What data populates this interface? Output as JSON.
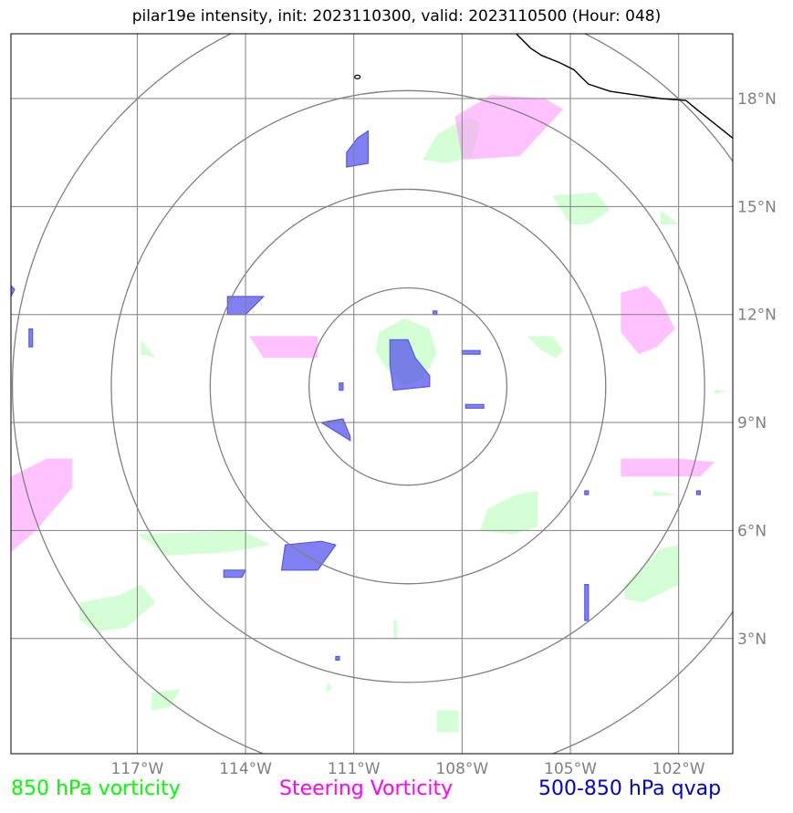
{
  "title": "pilar19e intensity, init: 2023110300, valid: 2023110500 (Hour: 048)",
  "map": {
    "lon_range": [
      -120.5,
      -100.5
    ],
    "lat_range": [
      -0.2,
      19.8
    ],
    "center": {
      "lon": -109.5,
      "lat": 10.0
    },
    "lon_ticks": [
      {
        "value": -117,
        "label": "117°W"
      },
      {
        "value": -114,
        "label": "114°W"
      },
      {
        "value": -111,
        "label": "111°W"
      },
      {
        "value": -108,
        "label": "108°W"
      },
      {
        "value": -105,
        "label": "105°W"
      },
      {
        "value": -102,
        "label": "102°W"
      }
    ],
    "lat_ticks": [
      {
        "value": 3,
        "label": "3°N"
      },
      {
        "value": 6,
        "label": "6°N"
      },
      {
        "value": 9,
        "label": "9°N"
      },
      {
        "value": 12,
        "label": "12°N"
      },
      {
        "value": 15,
        "label": "15°N"
      },
      {
        "value": 18,
        "label": "18°N"
      }
    ],
    "range_rings_deg": [
      2.74,
      5.48,
      8.22,
      10.96
    ],
    "colors": {
      "grid": "#808080",
      "rings": "#808080",
      "coast": "#000000",
      "vort850": "#ccffcc",
      "steering": "#ff99ff",
      "qvap": "#5555ee"
    },
    "coastline": [
      [
        -106.5,
        19.8
      ],
      [
        -106.1,
        19.4
      ],
      [
        -105.8,
        19.2
      ],
      [
        -105.3,
        19.0
      ],
      [
        -104.9,
        18.8
      ],
      [
        -104.5,
        18.4
      ],
      [
        -103.9,
        18.2
      ],
      [
        -103.2,
        18.1
      ],
      [
        -102.5,
        18.0
      ],
      [
        -101.8,
        17.95
      ],
      [
        -101.5,
        17.7
      ],
      [
        -101.0,
        17.3
      ],
      [
        -100.5,
        16.9
      ]
    ],
    "lakes": [
      [
        -110.9,
        18.6
      ]
    ],
    "vort850": [
      [
        [
          -110.3,
          11.5
        ],
        [
          -109.6,
          11.9
        ],
        [
          -108.9,
          11.6
        ],
        [
          -108.7,
          10.9
        ],
        [
          -109.1,
          10.2
        ],
        [
          -109.6,
          10.0
        ],
        [
          -110.1,
          10.5
        ],
        [
          -110.4,
          11.0
        ]
      ],
      [
        [
          -108.7,
          17.0
        ],
        [
          -107.8,
          17.5
        ],
        [
          -107.5,
          17.3
        ],
        [
          -107.7,
          16.4
        ],
        [
          -108.4,
          16.2
        ],
        [
          -109.1,
          16.3
        ]
      ],
      [
        [
          -105.5,
          15.3
        ],
        [
          -104.3,
          15.4
        ],
        [
          -103.9,
          14.9
        ],
        [
          -104.5,
          14.5
        ],
        [
          -105.0,
          14.5
        ]
      ],
      [
        [
          -102.5,
          14.9
        ],
        [
          -102.0,
          14.5
        ],
        [
          -102.5,
          14.5
        ]
      ],
      [
        [
          -106.2,
          11.4
        ],
        [
          -105.5,
          11.4
        ],
        [
          -105.2,
          11.0
        ],
        [
          -105.4,
          10.8
        ],
        [
          -105.8,
          11.0
        ]
      ],
      [
        [
          -116.9,
          11.3
        ],
        [
          -116.5,
          10.8
        ],
        [
          -116.9,
          10.9
        ]
      ],
      [
        [
          -117.0,
          5.9
        ],
        [
          -114.1,
          6.0
        ],
        [
          -113.3,
          5.6
        ],
        [
          -114.5,
          5.4
        ],
        [
          -116.2,
          5.3
        ]
      ],
      [
        [
          -118.6,
          4.0
        ],
        [
          -117.5,
          4.2
        ],
        [
          -116.9,
          4.5
        ],
        [
          -116.5,
          4.0
        ],
        [
          -117.3,
          3.3
        ],
        [
          -118.1,
          3.2
        ],
        [
          -118.6,
          3.5
        ]
      ],
      [
        [
          -116.6,
          1.5
        ],
        [
          -115.8,
          1.6
        ],
        [
          -116.1,
          1.1
        ],
        [
          -116.6,
          1.0
        ]
      ],
      [
        [
          -107.3,
          6.6
        ],
        [
          -106.5,
          7.0
        ],
        [
          -105.9,
          7.1
        ],
        [
          -105.9,
          6.1
        ],
        [
          -106.6,
          5.9
        ],
        [
          -107.5,
          6.0
        ]
      ],
      [
        [
          -103.5,
          4.5
        ],
        [
          -102.5,
          5.5
        ],
        [
          -102.0,
          5.6
        ],
        [
          -102.0,
          4.5
        ],
        [
          -103.0,
          4.0
        ],
        [
          -103.5,
          4.1
        ]
      ],
      [
        [
          -102.7,
          7.1
        ],
        [
          -102.0,
          7.0
        ],
        [
          -102.7,
          6.95
        ]
      ],
      [
        [
          -108.7,
          1.0
        ],
        [
          -108.1,
          1.0
        ],
        [
          -108.1,
          0.4
        ],
        [
          -108.7,
          0.4
        ]
      ],
      [
        [
          -111.7,
          1.8
        ],
        [
          -111.6,
          1.6
        ],
        [
          -111.8,
          1.5
        ]
      ],
      [
        [
          -109.9,
          3.5
        ],
        [
          -109.8,
          3.5
        ],
        [
          -109.8,
          3.0
        ],
        [
          -109.9,
          3.0
        ]
      ],
      [
        [
          -101.0,
          9.9
        ],
        [
          -100.6,
          9.9
        ],
        [
          -101.0,
          9.8
        ]
      ]
    ],
    "steering": [
      [
        [
          -108.2,
          17.5
        ],
        [
          -107.2,
          18.1
        ],
        [
          -105.7,
          18.0
        ],
        [
          -105.2,
          17.7
        ],
        [
          -106.4,
          16.4
        ],
        [
          -108.0,
          16.3
        ]
      ],
      [
        [
          -113.9,
          11.4
        ],
        [
          -112.0,
          11.4
        ],
        [
          -112.0,
          10.8
        ],
        [
          -113.5,
          10.8
        ]
      ],
      [
        [
          -103.6,
          12.6
        ],
        [
          -102.9,
          12.8
        ],
        [
          -102.5,
          12.4
        ],
        [
          -102.1,
          11.6
        ],
        [
          -102.6,
          11.1
        ],
        [
          -103.1,
          10.9
        ],
        [
          -103.6,
          11.5
        ]
      ],
      [
        [
          -103.6,
          8.0
        ],
        [
          -102.0,
          8.0
        ],
        [
          -101.0,
          7.9
        ],
        [
          -101.4,
          7.5
        ],
        [
          -103.6,
          7.5
        ]
      ],
      [
        [
          -120.5,
          7.5
        ],
        [
          -119.5,
          8.0
        ],
        [
          -118.8,
          8.0
        ],
        [
          -118.8,
          7.2
        ],
        [
          -119.8,
          6.0
        ],
        [
          -120.5,
          5.4
        ]
      ]
    ],
    "qvap": [
      [
        [
          -110.0,
          11.3
        ],
        [
          -109.5,
          11.3
        ],
        [
          -109.3,
          10.8
        ],
        [
          -108.9,
          10.3
        ],
        [
          -108.9,
          10.0
        ],
        [
          -109.9,
          9.9
        ],
        [
          -110.0,
          10.6
        ]
      ],
      [
        [
          -110.9,
          16.9
        ],
        [
          -110.6,
          17.1
        ],
        [
          -110.6,
          16.2
        ],
        [
          -111.2,
          16.1
        ],
        [
          -111.2,
          16.5
        ]
      ],
      [
        [
          -114.5,
          12.5
        ],
        [
          -113.5,
          12.5
        ],
        [
          -114.0,
          12.0
        ],
        [
          -114.5,
          12.0
        ]
      ],
      [
        [
          -111.9,
          9.0
        ],
        [
          -111.3,
          9.1
        ],
        [
          -111.1,
          8.6
        ],
        [
          -111.1,
          8.5
        ]
      ],
      [
        [
          -112.9,
          5.6
        ],
        [
          -111.9,
          5.7
        ],
        [
          -111.5,
          5.6
        ],
        [
          -112.0,
          4.9
        ],
        [
          -113.0,
          4.9
        ]
      ],
      [
        [
          -114.6,
          4.9
        ],
        [
          -114.0,
          4.9
        ],
        [
          -114.1,
          4.7
        ],
        [
          -114.6,
          4.7
        ]
      ],
      [
        [
          -120.5,
          12.8
        ],
        [
          -120.4,
          12.7
        ],
        [
          -120.5,
          12.5
        ]
      ],
      [
        [
          -120.0,
          11.6
        ],
        [
          -119.9,
          11.6
        ],
        [
          -119.9,
          11.1
        ],
        [
          -120.0,
          11.1
        ]
      ],
      [
        [
          -108.0,
          11.0
        ],
        [
          -107.5,
          11.0
        ],
        [
          -107.5,
          10.9
        ],
        [
          -108.0,
          10.9
        ]
      ],
      [
        [
          -107.9,
          9.5
        ],
        [
          -107.4,
          9.5
        ],
        [
          -107.4,
          9.4
        ],
        [
          -107.9,
          9.4
        ]
      ],
      [
        [
          -104.6,
          4.5
        ],
        [
          -104.5,
          4.5
        ],
        [
          -104.5,
          3.5
        ],
        [
          -104.6,
          3.5
        ]
      ],
      [
        [
          -111.4,
          10.1
        ],
        [
          -111.3,
          10.1
        ],
        [
          -111.3,
          9.9
        ],
        [
          -111.4,
          9.9
        ]
      ],
      [
        [
          -108.8,
          12.1
        ],
        [
          -108.7,
          12.1
        ],
        [
          -108.7,
          12.0
        ],
        [
          -108.8,
          12.0
        ]
      ],
      [
        [
          -111.5,
          2.5
        ],
        [
          -111.4,
          2.5
        ],
        [
          -111.4,
          2.4
        ],
        [
          -111.5,
          2.4
        ]
      ],
      [
        [
          -104.6,
          7.1
        ],
        [
          -104.5,
          7.1
        ],
        [
          -104.5,
          7.0
        ],
        [
          -104.6,
          7.0
        ]
      ],
      [
        [
          -101.5,
          7.1
        ],
        [
          -101.4,
          7.1
        ],
        [
          -101.4,
          7.0
        ],
        [
          -101.5,
          7.0
        ]
      ]
    ]
  },
  "legend": {
    "vort850": {
      "label": "850 hPa vorticity",
      "color": "#00ff00"
    },
    "steering": {
      "label": "Steering Vorticity",
      "color": "#ff00ff"
    },
    "qvap": {
      "label": "500-850 hPa qvap",
      "color": "#0000cc"
    }
  }
}
